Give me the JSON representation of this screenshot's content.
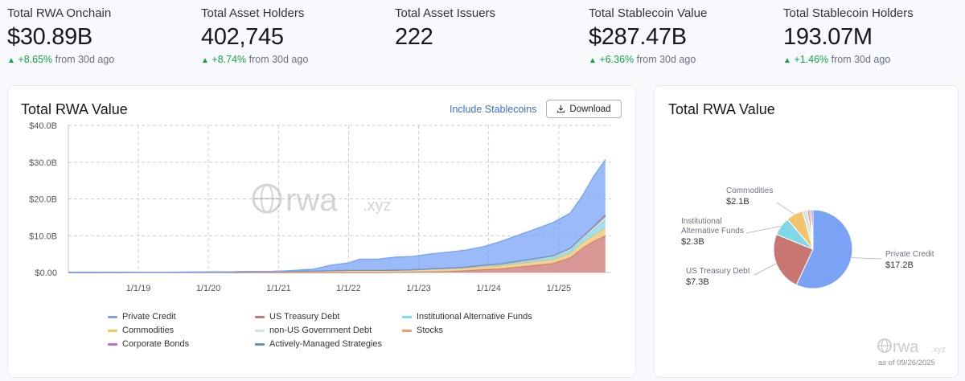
{
  "stats": [
    {
      "label": "Total RWA Onchain",
      "value": "$30.89B",
      "change": "+8.65%",
      "period": "from 30d ago"
    },
    {
      "label": "Total Asset Holders",
      "value": "402,745",
      "change": "+8.74%",
      "period": "from 30d ago"
    },
    {
      "label": "Total Asset Issuers",
      "value": "222",
      "change": "",
      "period": ""
    },
    {
      "label": "Total Stablecoin Value",
      "value": "$287.47B",
      "change": "+6.36%",
      "period": "from 30d ago"
    },
    {
      "label": "Total Stablecoin Holders",
      "value": "193.07M",
      "change": "+1.46%",
      "period": "from 30d ago"
    }
  ],
  "area_card": {
    "title": "Total RWA Value",
    "toggle_label": "Include Stablecoins",
    "download_label": "Download",
    "watermark": "rwa",
    "watermark_suffix": ".xyz"
  },
  "pie_card": {
    "title": "Total RWA Value",
    "watermark": "rwa",
    "watermark_suffix": ".xyz",
    "as_of": "as of 09/26/2025"
  },
  "colors": {
    "private_credit": "#7aa3f5",
    "us_treasury": "#c97672",
    "institutional_alt": "#7fd7ea",
    "commodities": "#f2c46d",
    "non_us_gov": "#cfe6e4",
    "stocks": "#f09a6b",
    "corporate_bonds": "#c26fd0",
    "managed": "#6c8fb5",
    "positive": "#16a34a"
  },
  "chart_data": [
    {
      "type": "area",
      "title": "Total RWA Value",
      "stacked": true,
      "x": [
        "2018-01",
        "2019-01",
        "2020-01",
        "2020-07",
        "2021-01",
        "2021-07",
        "2021-10",
        "2022-01",
        "2022-03",
        "2022-06",
        "2022-09",
        "2022-12",
        "2023-03",
        "2023-06",
        "2023-09",
        "2023-12",
        "2024-03",
        "2024-06",
        "2024-09",
        "2024-12",
        "2025-03",
        "2025-05",
        "2025-07",
        "2025-09"
      ],
      "x_ticks": [
        "1/1/19",
        "1/1/20",
        "1/1/21",
        "1/1/22",
        "1/1/23",
        "1/1/24",
        "1/1/25"
      ],
      "y_ticks": [
        "$0.00",
        "$10.0B",
        "$20.0B",
        "$30.0B",
        "$40.0B"
      ],
      "ylim": [
        0,
        40
      ],
      "y_unit": "B USD",
      "grid": true,
      "legend_position": "bottom",
      "series": [
        {
          "name": "US Treasury Debt",
          "values": [
            0,
            0,
            0,
            0,
            0,
            0,
            0,
            0,
            0,
            0,
            0.05,
            0.1,
            0.2,
            0.3,
            0.5,
            0.8,
            1.0,
            1.5,
            2.0,
            2.5,
            4.0,
            6.5,
            8.5,
            10.0
          ]
        },
        {
          "name": "Commodities",
          "values": [
            0,
            0.05,
            0.1,
            0.2,
            0.3,
            0.4,
            0.5,
            0.6,
            0.6,
            0.6,
            0.6,
            0.6,
            0.7,
            0.7,
            0.7,
            0.8,
            0.8,
            0.9,
            0.9,
            1.0,
            1.2,
            1.4,
            1.6,
            2.1
          ]
        },
        {
          "name": "Institutional Alternative Funds",
          "values": [
            0,
            0,
            0,
            0,
            0,
            0,
            0,
            0,
            0,
            0,
            0,
            0,
            0,
            0.05,
            0.1,
            0.2,
            0.3,
            0.4,
            0.5,
            0.6,
            0.8,
            1.0,
            1.5,
            2.3
          ]
        },
        {
          "name": "non-US Government Debt",
          "values": [
            0,
            0,
            0,
            0,
            0,
            0,
            0,
            0,
            0,
            0,
            0,
            0.05,
            0.1,
            0.1,
            0.1,
            0.15,
            0.2,
            0.2,
            0.3,
            0.3,
            0.4,
            0.4,
            0.5,
            0.6
          ]
        },
        {
          "name": "Stocks",
          "values": [
            0,
            0,
            0,
            0,
            0,
            0,
            0,
            0,
            0,
            0,
            0,
            0,
            0,
            0,
            0,
            0,
            0,
            0,
            0,
            0.05,
            0.1,
            0.15,
            0.2,
            0.3
          ]
        },
        {
          "name": "Corporate Bonds",
          "values": [
            0,
            0,
            0,
            0,
            0,
            0,
            0,
            0,
            0,
            0,
            0,
            0,
            0,
            0.05,
            0.05,
            0.05,
            0.05,
            0.1,
            0.1,
            0.1,
            0.1,
            0.1,
            0.15,
            0.2
          ]
        },
        {
          "name": "Actively-Managed Strategies",
          "values": [
            0,
            0,
            0,
            0,
            0,
            0,
            0,
            0,
            0,
            0,
            0,
            0,
            0,
            0,
            0,
            0,
            0,
            0,
            0,
            0,
            0,
            0.05,
            0.1,
            0.2
          ]
        },
        {
          "name": "Private Credit",
          "values": [
            0,
            0,
            0,
            0,
            0,
            0.5,
            1.5,
            2.0,
            3.0,
            3.0,
            3.5,
            3.6,
            4.0,
            4.3,
            4.6,
            5.0,
            6.0,
            7.0,
            8.0,
            9.0,
            9.5,
            11.0,
            13.5,
            15.0
          ]
        }
      ],
      "legend": [
        "Private Credit",
        "US Treasury Debt",
        "Institutional Alternative Funds",
        "Commodities",
        "non-US Government Debt",
        "Stocks",
        "Corporate Bonds",
        "Actively-Managed Strategies"
      ]
    },
    {
      "type": "pie",
      "title": "Total RWA Value",
      "slices": [
        {
          "name": "Private Credit",
          "value": 17.2,
          "label": "$17.2B"
        },
        {
          "name": "US Treasury Debt",
          "value": 7.3,
          "label": "$7.3B"
        },
        {
          "name": "Institutional Alternative Funds",
          "value": 2.3,
          "label": "$2.3B"
        },
        {
          "name": "Commodities",
          "value": 2.1,
          "label": "$2.1B"
        },
        {
          "name": "non-US Government Debt",
          "value": 0.6,
          "label": ""
        },
        {
          "name": "Stocks",
          "value": 0.3,
          "label": ""
        },
        {
          "name": "Corporate Bonds",
          "value": 0.2,
          "label": ""
        },
        {
          "name": "Actively-Managed Strategies",
          "value": 0.2,
          "label": ""
        }
      ],
      "labels": [
        {
          "line1": "Private Credit",
          "line2": "",
          "value": "$17.2B"
        },
        {
          "line1": "US Treasury Debt",
          "line2": "",
          "value": "$7.3B"
        },
        {
          "line1": "Institutional",
          "line2": "Alternative Funds",
          "value": "$2.3B"
        },
        {
          "line1": "Commodities",
          "line2": "",
          "value": "$2.1B"
        }
      ]
    }
  ]
}
